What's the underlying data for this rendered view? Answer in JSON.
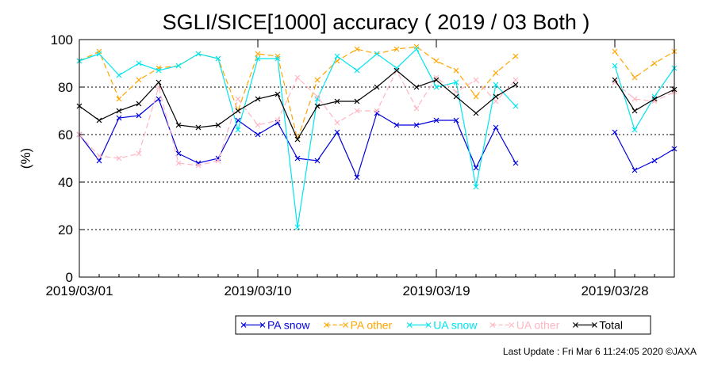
{
  "chart_data": {
    "type": "line",
    "title": "SGLI/SICE[1000] accuracy ( 2019 / 03 Both )",
    "ylabel": "(%)",
    "xlabel": "",
    "ylim": [
      0,
      100
    ],
    "yticks": [
      "0",
      "20",
      "40",
      "60",
      "80",
      "100"
    ],
    "xlim": [
      "2019/03/01",
      "2019/03/31"
    ],
    "xticks": [
      "2019/03/01",
      "2019/03/10",
      "2019/03/19",
      "2019/03/28"
    ],
    "grid": "horizontal dotted at 20, 40, 60, 80",
    "legend_position": "bottom",
    "series": [
      {
        "name": "PA snow",
        "color": "#0000dd",
        "dash": "solid",
        "points": [
          [
            "2019/03/01",
            60
          ],
          [
            "2019/03/02",
            49
          ],
          [
            "2019/03/03",
            67
          ],
          [
            "2019/03/04",
            68
          ],
          [
            "2019/03/05",
            75
          ],
          [
            "2019/03/06",
            52
          ],
          [
            "2019/03/07",
            48
          ],
          [
            "2019/03/08",
            50
          ],
          [
            "2019/03/09",
            66
          ],
          [
            "2019/03/10",
            60
          ],
          [
            "2019/03/11",
            65
          ],
          [
            "2019/03/12",
            50
          ],
          [
            "2019/03/13",
            49
          ],
          [
            "2019/03/14",
            61
          ],
          [
            "2019/03/15",
            42
          ],
          [
            "2019/03/16",
            69
          ],
          [
            "2019/03/17",
            64
          ],
          [
            "2019/03/18",
            64
          ],
          [
            "2019/03/19",
            66
          ],
          [
            "2019/03/20",
            66
          ],
          [
            "2019/03/21",
            46
          ],
          [
            "2019/03/22",
            63
          ],
          [
            "2019/03/23",
            48
          ],
          [
            "2019/03/28",
            61
          ],
          [
            "2019/03/29",
            45
          ],
          [
            "2019/03/30",
            49
          ],
          [
            "2019/03/31",
            54
          ]
        ]
      },
      {
        "name": "PA other",
        "color": "#ffa500",
        "dash": "dashed",
        "points": [
          [
            "2019/03/01",
            91
          ],
          [
            "2019/03/02",
            95
          ],
          [
            "2019/03/03",
            75
          ],
          [
            "2019/03/04",
            83
          ],
          [
            "2019/03/05",
            88
          ],
          [
            "2019/03/06",
            89
          ],
          [
            "2019/03/07",
            94
          ],
          [
            "2019/03/08",
            92
          ],
          [
            "2019/03/09",
            70
          ],
          [
            "2019/03/10",
            94
          ],
          [
            "2019/03/11",
            93
          ],
          [
            "2019/03/12",
            58
          ],
          [
            "2019/03/13",
            83
          ],
          [
            "2019/03/14",
            91
          ],
          [
            "2019/03/15",
            96
          ],
          [
            "2019/03/16",
            94
          ],
          [
            "2019/03/17",
            96
          ],
          [
            "2019/03/18",
            97
          ],
          [
            "2019/03/19",
            91
          ],
          [
            "2019/03/20",
            87
          ],
          [
            "2019/03/21",
            76
          ],
          [
            "2019/03/22",
            86
          ],
          [
            "2019/03/23",
            93
          ],
          [
            "2019/03/28",
            95
          ],
          [
            "2019/03/29",
            84
          ],
          [
            "2019/03/30",
            90
          ],
          [
            "2019/03/31",
            95
          ]
        ]
      },
      {
        "name": "UA snow",
        "color": "#00e5ee",
        "dash": "solid",
        "points": [
          [
            "2019/03/01",
            91
          ],
          [
            "2019/03/02",
            94
          ],
          [
            "2019/03/03",
            85
          ],
          [
            "2019/03/04",
            90
          ],
          [
            "2019/03/05",
            87
          ],
          [
            "2019/03/06",
            89
          ],
          [
            "2019/03/07",
            94
          ],
          [
            "2019/03/08",
            92
          ],
          [
            "2019/03/09",
            62
          ],
          [
            "2019/03/10",
            92
          ],
          [
            "2019/03/11",
            92
          ],
          [
            "2019/03/12",
            21
          ],
          [
            "2019/03/13",
            75
          ],
          [
            "2019/03/14",
            93
          ],
          [
            "2019/03/15",
            87
          ],
          [
            "2019/03/16",
            94
          ],
          [
            "2019/03/17",
            88
          ],
          [
            "2019/03/18",
            96
          ],
          [
            "2019/03/19",
            80
          ],
          [
            "2019/03/20",
            82
          ],
          [
            "2019/03/21",
            38
          ],
          [
            "2019/03/22",
            81
          ],
          [
            "2019/03/23",
            72
          ],
          [
            "2019/03/28",
            89
          ],
          [
            "2019/03/29",
            62
          ],
          [
            "2019/03/30",
            76
          ],
          [
            "2019/03/31",
            88
          ]
        ]
      },
      {
        "name": "UA other",
        "color": "#ffb6c1",
        "dash": "dashed",
        "points": [
          [
            "2019/03/01",
            60
          ],
          [
            "2019/03/02",
            51
          ],
          [
            "2019/03/03",
            50
          ],
          [
            "2019/03/04",
            52
          ],
          [
            "2019/03/05",
            80
          ],
          [
            "2019/03/06",
            48
          ],
          [
            "2019/03/07",
            47
          ],
          [
            "2019/03/08",
            49
          ],
          [
            "2019/03/09",
            75
          ],
          [
            "2019/03/10",
            64
          ],
          [
            "2019/03/11",
            66
          ],
          [
            "2019/03/12",
            84
          ],
          [
            "2019/03/13",
            76
          ],
          [
            "2019/03/14",
            65
          ],
          [
            "2019/03/15",
            70
          ],
          [
            "2019/03/16",
            70
          ],
          [
            "2019/03/17",
            87
          ],
          [
            "2019/03/18",
            71
          ],
          [
            "2019/03/19",
            84
          ],
          [
            "2019/03/20",
            78
          ],
          [
            "2019/03/21",
            83
          ],
          [
            "2019/03/22",
            74
          ],
          [
            "2019/03/23",
            83
          ],
          [
            "2019/03/28",
            82
          ],
          [
            "2019/03/29",
            75
          ],
          [
            "2019/03/30",
            74
          ],
          [
            "2019/03/31",
            78
          ]
        ]
      },
      {
        "name": "Total",
        "color": "#000000",
        "dash": "solid",
        "points": [
          [
            "2019/03/01",
            72
          ],
          [
            "2019/03/02",
            66
          ],
          [
            "2019/03/03",
            70
          ],
          [
            "2019/03/04",
            73
          ],
          [
            "2019/03/05",
            82
          ],
          [
            "2019/03/06",
            64
          ],
          [
            "2019/03/07",
            63
          ],
          [
            "2019/03/08",
            64
          ],
          [
            "2019/03/09",
            70
          ],
          [
            "2019/03/10",
            75
          ],
          [
            "2019/03/11",
            77
          ],
          [
            "2019/03/12",
            58
          ],
          [
            "2019/03/13",
            72
          ],
          [
            "2019/03/14",
            74
          ],
          [
            "2019/03/15",
            74
          ],
          [
            "2019/03/16",
            80
          ],
          [
            "2019/03/17",
            87
          ],
          [
            "2019/03/18",
            80
          ],
          [
            "2019/03/19",
            83
          ],
          [
            "2019/03/20",
            76
          ],
          [
            "2019/03/21",
            69
          ],
          [
            "2019/03/22",
            76
          ],
          [
            "2019/03/23",
            81
          ],
          [
            "2019/03/28",
            83
          ],
          [
            "2019/03/29",
            70
          ],
          [
            "2019/03/30",
            75
          ],
          [
            "2019/03/31",
            79
          ]
        ]
      }
    ]
  },
  "footer": "Last Update : Fri Mar  6 11:24:05 2020  ©JAXA"
}
